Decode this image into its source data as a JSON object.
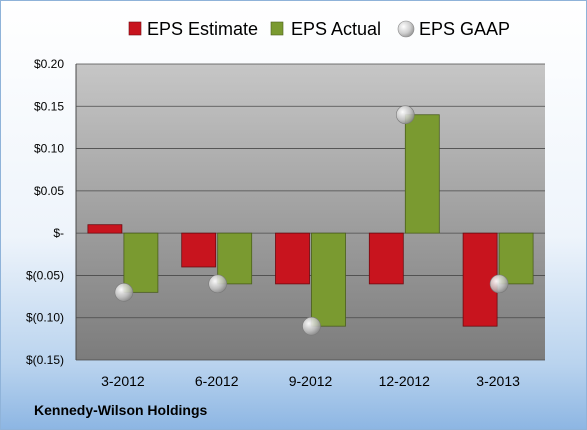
{
  "company": "Kennedy-Wilson Holdings",
  "colors": {
    "estimate": "#c8141e",
    "actual": "#7a9a30",
    "gaap": "#b8b8b8",
    "plot_top": "#c6c6c6",
    "plot_bottom": "#7c7c7c"
  },
  "chart_data": {
    "type": "bar",
    "categories": [
      "3-2012",
      "6-2012",
      "9-2012",
      "12-2012",
      "3-2013"
    ],
    "series": [
      {
        "name": "EPS Estimate",
        "values": [
          0.01,
          -0.04,
          -0.06,
          -0.06,
          -0.11
        ]
      },
      {
        "name": "EPS Actual",
        "values": [
          -0.07,
          -0.06,
          -0.11,
          0.14,
          -0.06
        ]
      },
      {
        "name": "EPS GAAP",
        "values": [
          -0.07,
          -0.06,
          -0.11,
          0.14,
          -0.06
        ]
      }
    ],
    "y_ticks": [
      0.2,
      0.15,
      0.1,
      0.05,
      0,
      -0.05,
      -0.1,
      -0.15
    ],
    "y_tick_labels": [
      "$0.20",
      "$0.15",
      "$0.10",
      "$0.05",
      "$-",
      "$(0.05)",
      "$(0.10)",
      "$(0.15)"
    ],
    "ylim": [
      -0.15,
      0.2
    ],
    "grid": true,
    "legend_position": "top"
  }
}
